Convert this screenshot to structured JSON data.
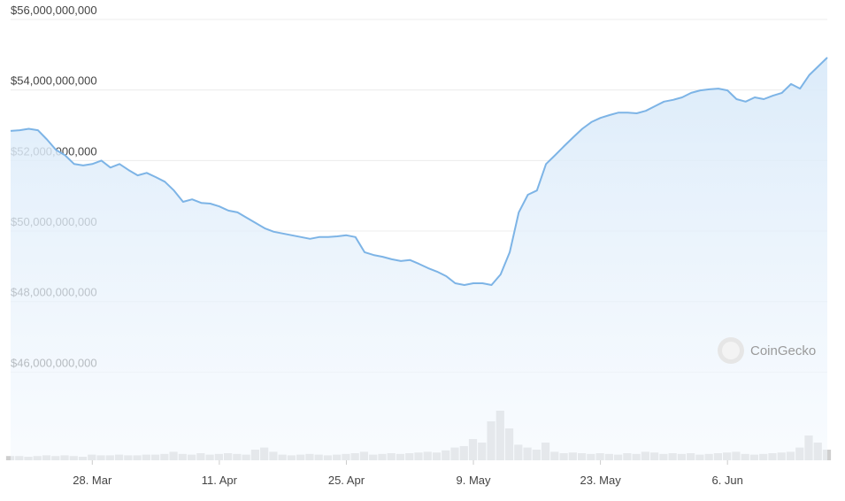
{
  "chart_data": {
    "type": "area",
    "color": "#7db4e6",
    "grid": true,
    "watermark": "CoinGecko",
    "ylim": [
      43500000000,
      56000000000
    ],
    "yticks": [
      {
        "value": 46000000000,
        "label": "$46,000,000,000"
      },
      {
        "value": 48000000000,
        "label": "$48,000,000,000"
      },
      {
        "value": 50000000000,
        "label": "$50,000,000,000"
      },
      {
        "value": 52000000000,
        "label": "$52,000,000,000"
      },
      {
        "value": 54000000000,
        "label": "$54,000,000,000"
      },
      {
        "value": 56000000000,
        "label": "$56,000,000,000"
      }
    ],
    "x": [
      "19. Mar",
      "20. Mar",
      "21. Mar",
      "22. Mar",
      "23. Mar",
      "24. Mar",
      "25. Mar",
      "26. Mar",
      "27. Mar",
      "28. Mar",
      "29. Mar",
      "30. Mar",
      "31. Mar",
      "1. Apr",
      "2. Apr",
      "3. Apr",
      "4. Apr",
      "5. Apr",
      "6. Apr",
      "7. Apr",
      "8. Apr",
      "9. Apr",
      "10. Apr",
      "11. Apr",
      "12. Apr",
      "13. Apr",
      "14. Apr",
      "15. Apr",
      "16. Apr",
      "17. Apr",
      "18. Apr",
      "19. Apr",
      "20. Apr",
      "21. Apr",
      "22. Apr",
      "23. Apr",
      "24. Apr",
      "25. Apr",
      "26. Apr",
      "27. Apr",
      "28. Apr",
      "29. Apr",
      "30. Apr",
      "1. May",
      "2. May",
      "3. May",
      "4. May",
      "5. May",
      "6. May",
      "7. May",
      "8. May",
      "9. May",
      "10. May",
      "11. May",
      "12. May",
      "13. May",
      "14. May",
      "15. May",
      "16. May",
      "17. May",
      "18. May",
      "19. May",
      "20. May",
      "21. May",
      "22. May",
      "23. May",
      "24. May",
      "25. May",
      "26. May",
      "27. May",
      "28. May",
      "29. May",
      "30. May",
      "31. May",
      "1. Jun",
      "2. Jun",
      "3. Jun",
      "4. Jun",
      "5. Jun",
      "6. Jun",
      "7. Jun",
      "8. Jun",
      "9. Jun",
      "10. Jun",
      "11. Jun",
      "12. Jun",
      "13. Jun",
      "14. Jun",
      "15. Jun",
      "16. Jun",
      "17. Jun"
    ],
    "xticks": [
      "28. Mar",
      "11. Apr",
      "25. Apr",
      "9. May",
      "23. May",
      "6. Jun"
    ],
    "values": [
      52840000000,
      52860000000,
      52900000000,
      52860000000,
      52600000000,
      52300000000,
      52150000000,
      51900000000,
      51860000000,
      51900000000,
      52000000000,
      51800000000,
      51900000000,
      51730000000,
      51580000000,
      51650000000,
      51530000000,
      51400000000,
      51150000000,
      50830000000,
      50900000000,
      50800000000,
      50780000000,
      50700000000,
      50580000000,
      50530000000,
      50380000000,
      50230000000,
      50080000000,
      49980000000,
      49930000000,
      49880000000,
      49830000000,
      49780000000,
      49830000000,
      49830000000,
      49850000000,
      49880000000,
      49830000000,
      49400000000,
      49320000000,
      49270000000,
      49200000000,
      49150000000,
      49180000000,
      49070000000,
      48950000000,
      48850000000,
      48720000000,
      48520000000,
      48470000000,
      48520000000,
      48520000000,
      48470000000,
      48770000000,
      49400000000,
      50530000000,
      51030000000,
      51150000000,
      51900000000,
      52150000000,
      52410000000,
      52660000000,
      52900000000,
      53090000000,
      53210000000,
      53290000000,
      53360000000,
      53360000000,
      53340000000,
      53410000000,
      53540000000,
      53670000000,
      53720000000,
      53790000000,
      53920000000,
      53990000000,
      54020000000,
      54040000000,
      53990000000,
      53740000000,
      53670000000,
      53790000000,
      53740000000,
      53840000000,
      53920000000,
      54170000000,
      54040000000,
      54420000000,
      54670000000,
      54920000000
    ],
    "volume": {
      "color": "#cfcfcf",
      "y2lim": [
        0,
        100
      ],
      "values": [
        6,
        6,
        5,
        6,
        7,
        6,
        7,
        6,
        5,
        8,
        7,
        7,
        8,
        7,
        7,
        8,
        8,
        9,
        12,
        9,
        8,
        10,
        8,
        9,
        10,
        9,
        8,
        15,
        18,
        12,
        8,
        7,
        8,
        9,
        8,
        7,
        8,
        9,
        10,
        12,
        8,
        9,
        10,
        9,
        10,
        11,
        12,
        11,
        14,
        18,
        20,
        30,
        25,
        55,
        70,
        45,
        22,
        18,
        15,
        25,
        12,
        10,
        11,
        10,
        9,
        10,
        9,
        8,
        10,
        9,
        12,
        11,
        9,
        10,
        9,
        10,
        8,
        9,
        10,
        11,
        12,
        9,
        8,
        9,
        10,
        11,
        12,
        18,
        35,
        25,
        15
      ]
    }
  }
}
